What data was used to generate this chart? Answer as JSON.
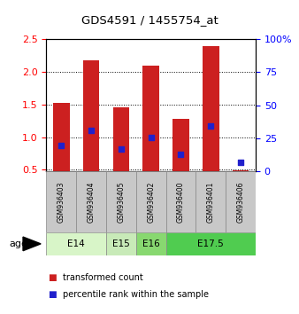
{
  "title": "GDS4591 / 1455754_at",
  "samples": [
    "GSM936403",
    "GSM936404",
    "GSM936405",
    "GSM936402",
    "GSM936400",
    "GSM936401",
    "GSM936406"
  ],
  "transformed_count": [
    1.52,
    2.18,
    1.46,
    2.1,
    1.28,
    2.39,
    0.49
  ],
  "percentile_rank_left": [
    0.87,
    1.1,
    0.82,
    1.0,
    0.74,
    1.17,
    0.62
  ],
  "age_groups": [
    {
      "label": "E14",
      "spans": [
        0,
        1
      ],
      "color": "#d8f5c8"
    },
    {
      "label": "E15",
      "spans": [
        2,
        2
      ],
      "color": "#c8eab8"
    },
    {
      "label": "E16",
      "spans": [
        3,
        3
      ],
      "color": "#88d870"
    },
    {
      "label": "E17.5",
      "spans": [
        4,
        6
      ],
      "color": "#50cc50"
    }
  ],
  "ylim_left": [
    0.48,
    2.5
  ],
  "ylim_right": [
    0,
    100
  ],
  "yticks_left": [
    0.5,
    1.0,
    1.5,
    2.0,
    2.5
  ],
  "yticks_right": [
    0,
    25,
    50,
    75,
    100
  ],
  "bar_color": "#cc2020",
  "dot_color": "#2020cc",
  "bar_width": 0.55,
  "plot_bg_color": "#ffffff",
  "sample_box_color": "#c8c8c8",
  "legend_tc": "transformed count",
  "legend_pr": "percentile rank within the sample"
}
